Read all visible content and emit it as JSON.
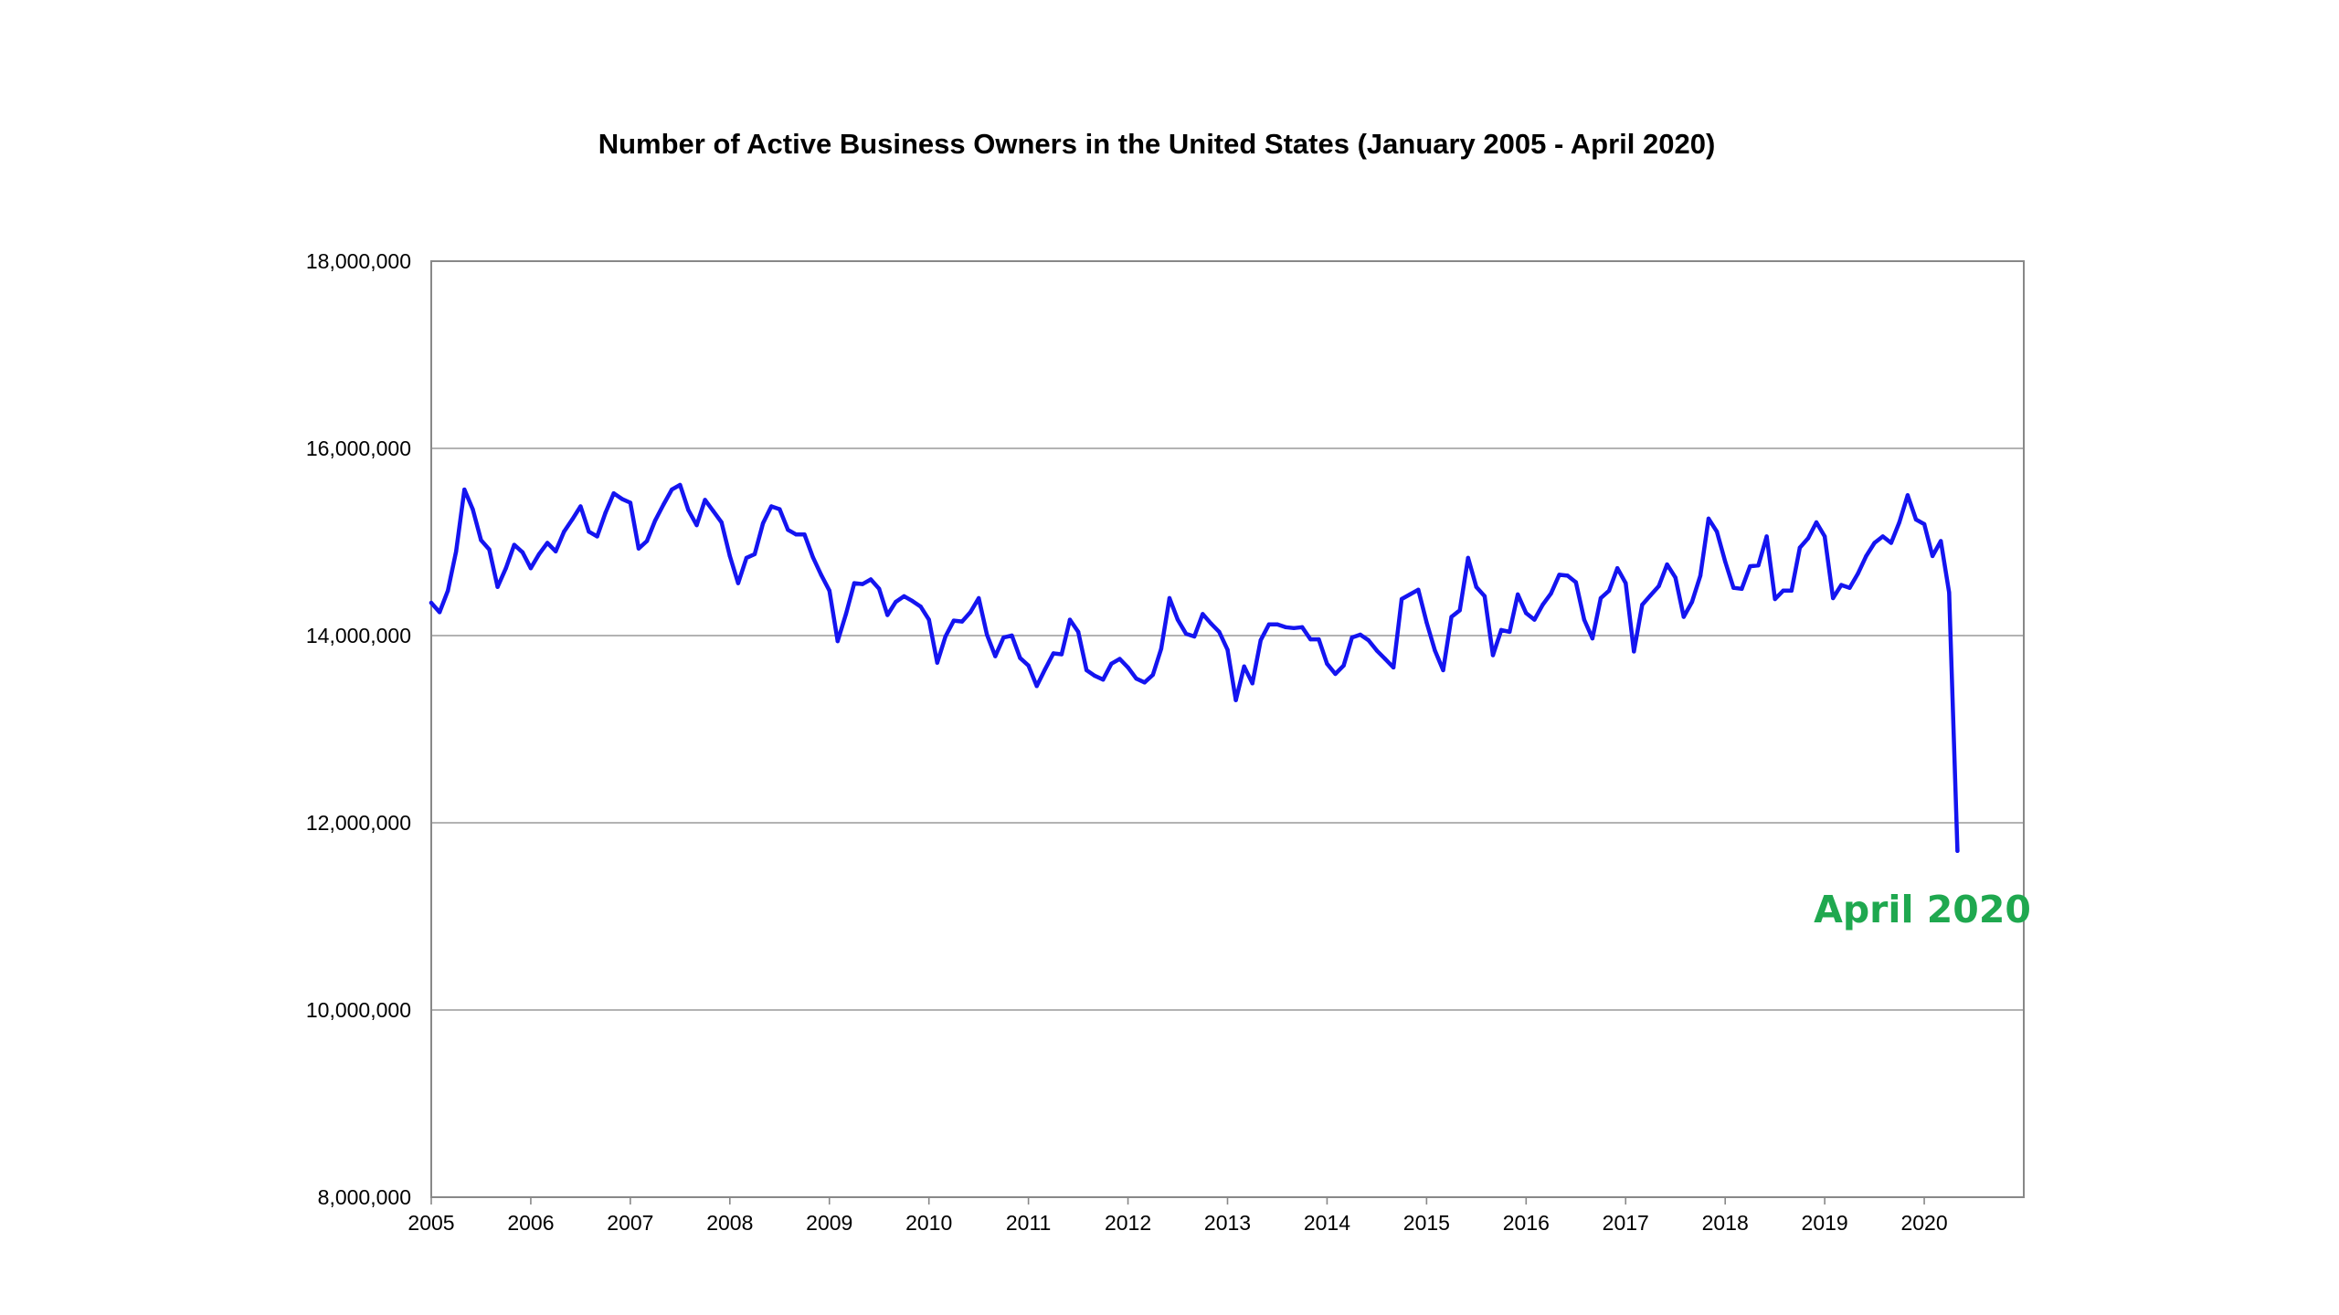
{
  "chart_data": {
    "type": "line",
    "title": "Number of Active Business Owners in the United States (January 2005 - April 2020)",
    "xlabel": "",
    "ylabel": "",
    "x_tick_labels": [
      "2005",
      "2006",
      "2007",
      "2008",
      "2009",
      "2010",
      "2011",
      "2012",
      "2013",
      "2014",
      "2015",
      "2016",
      "2017",
      "2018",
      "2019",
      "2020"
    ],
    "y_tick_labels": [
      "8,000,000",
      "10,000,000",
      "12,000,000",
      "14,000,000",
      "16,000,000",
      "18,000,000"
    ],
    "y_ticks": [
      8000000,
      10000000,
      12000000,
      14000000,
      16000000,
      18000000
    ],
    "xlim": [
      "2005-01",
      "2020-12"
    ],
    "ylim": [
      8000000,
      18000000
    ],
    "grid": "horizontal",
    "legend": "none",
    "annotation": {
      "text": "April 2020",
      "color": "#1fa84f",
      "x": "2020-04"
    },
    "series": [
      {
        "color": "#1414f0",
        "start": "2005-01",
        "frequency": "monthly",
        "values": [
          14350000,
          14250000,
          14480000,
          14900000,
          15560000,
          15350000,
          15020000,
          14920000,
          14520000,
          14720000,
          14970000,
          14890000,
          14720000,
          14870000,
          14990000,
          14900000,
          15110000,
          15240000,
          15380000,
          15110000,
          15060000,
          15310000,
          15520000,
          15460000,
          15420000,
          14930000,
          15010000,
          15230000,
          15400000,
          15560000,
          15610000,
          15340000,
          15180000,
          15450000,
          15330000,
          15210000,
          14850000,
          14560000,
          14830000,
          14870000,
          15200000,
          15380000,
          15350000,
          15130000,
          15080000,
          15080000,
          14840000,
          14650000,
          14480000,
          13940000,
          14230000,
          14560000,
          14550000,
          14600000,
          14500000,
          14220000,
          14360000,
          14420000,
          14370000,
          14310000,
          14170000,
          13710000,
          13990000,
          14160000,
          14150000,
          14250000,
          14400000,
          14010000,
          13780000,
          13980000,
          14000000,
          13760000,
          13680000,
          13460000,
          13640000,
          13810000,
          13800000,
          14170000,
          14040000,
          13630000,
          13570000,
          13530000,
          13700000,
          13750000,
          13660000,
          13540000,
          13500000,
          13580000,
          13860000,
          14400000,
          14170000,
          14020000,
          13990000,
          14230000,
          14130000,
          14040000,
          13850000,
          13310000,
          13670000,
          13490000,
          13950000,
          14120000,
          14120000,
          14090000,
          14080000,
          14090000,
          13960000,
          13960000,
          13700000,
          13590000,
          13680000,
          13980000,
          14010000,
          13950000,
          13840000,
          13750000,
          13660000,
          14390000,
          14440000,
          14490000,
          14140000,
          13840000,
          13630000,
          14200000,
          14270000,
          14830000,
          14520000,
          14420000,
          13790000,
          14060000,
          14040000,
          14440000,
          14240000,
          14170000,
          14330000,
          14450000,
          14650000,
          14640000,
          14570000,
          14170000,
          13970000,
          14400000,
          14480000,
          14720000,
          14560000,
          13830000,
          14330000,
          14430000,
          14530000,
          14760000,
          14620000,
          14200000,
          14360000,
          14640000,
          15250000,
          15110000,
          14790000,
          14510000,
          14500000,
          14740000,
          14750000,
          15060000,
          14390000,
          14480000,
          14480000,
          14940000,
          15040000,
          15210000,
          15060000,
          14400000,
          14540000,
          14510000,
          14660000,
          14850000,
          14990000,
          15060000,
          14990000,
          15210000,
          15500000,
          15240000,
          15190000,
          14850000,
          15010000,
          14460000,
          11700000
        ]
      }
    ]
  }
}
